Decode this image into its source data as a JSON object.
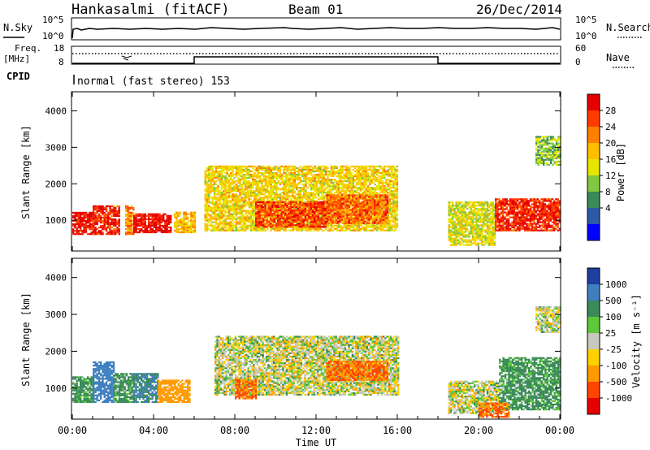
{
  "header": {
    "station": "Hankasalmi (fitACF)",
    "beam": "Beam 01",
    "date": "26/Dec/2014"
  },
  "noise_panel": {
    "left_label": "N.Sky",
    "right_label": "N.Search",
    "ticks_left": [
      "10^5",
      "10^0"
    ],
    "ticks_right": [
      "10^5",
      "10^0"
    ]
  },
  "freq_panel": {
    "left_label_lines": [
      "Freq.",
      "[MHz]"
    ],
    "right_label": "Nave",
    "ticks_left": [
      "18",
      "8"
    ],
    "ticks_right": [
      "60",
      "0"
    ]
  },
  "cpid": {
    "label": "CPID",
    "text": "normal (fast stereo) 153"
  },
  "time_axis": {
    "label": "Time UT",
    "ticks": [
      "00:00",
      "04:00",
      "08:00",
      "12:00",
      "16:00",
      "20:00",
      "00:00"
    ]
  },
  "power_panel": {
    "ylabel": "Slant Range [km]",
    "yticks": [
      "4000",
      "3000",
      "2000",
      "1000"
    ],
    "colorbar_label": "Power [dB]",
    "colorbar_ticks": [
      "28",
      "24",
      "20",
      "16",
      "12",
      "8",
      "4"
    ],
    "colorbar_colors": [
      "#e60000",
      "#ff3b00",
      "#ff7f00",
      "#ffbf00",
      "#e6e600",
      "#80c840",
      "#3a8a5a",
      "#2a5aa8",
      "#0000ff"
    ]
  },
  "velocity_panel": {
    "ylabel": "Slant Range [km]",
    "yticks": [
      "4000",
      "3000",
      "2000",
      "1000"
    ],
    "colorbar_label": "Velocity [m s⁻¹]",
    "colorbar_ticks": [
      "1000",
      "500",
      "100",
      "25",
      "-25",
      "-100",
      "-500",
      "-1000"
    ],
    "colorbar_colors": [
      "#1e3fa0",
      "#3f7fbf",
      "#3a8a5a",
      "#5cc83c",
      "#c8c8c0",
      "#ffd000",
      "#ff9a00",
      "#ff4500",
      "#e60000"
    ]
  },
  "chart_data": [
    {
      "type": "heatmap",
      "title": "Power",
      "x_unit": "hours UT",
      "xlim": [
        0,
        24
      ],
      "ylim": [
        180,
        4500
      ],
      "ylabel": "Slant Range [km]",
      "regions": [
        {
          "x": [
            0.0,
            1.0
          ],
          "y": [
            600,
            1200
          ],
          "power_db": 28
        },
        {
          "x": [
            1.0,
            2.3
          ],
          "y": [
            600,
            1400
          ],
          "power_db": 26
        },
        {
          "x": [
            2.6,
            3.0
          ],
          "y": [
            600,
            1400
          ],
          "power_db": 20
        },
        {
          "x": [
            3.0,
            4.8
          ],
          "y": [
            650,
            1150
          ],
          "power_db": 28
        },
        {
          "x": [
            5.0,
            6.0
          ],
          "y": [
            650,
            1200
          ],
          "power_db": 16
        },
        {
          "x": [
            6.5,
            16.0
          ],
          "y": [
            700,
            2500
          ],
          "power_db": 14
        },
        {
          "x": [
            9.0,
            12.5
          ],
          "y": [
            800,
            1500
          ],
          "power_db": 24
        },
        {
          "x": [
            12.5,
            15.5
          ],
          "y": [
            900,
            1700
          ],
          "power_db": 22
        },
        {
          "x": [
            18.5,
            20.8
          ],
          "y": [
            300,
            1500
          ],
          "power_db": 12
        },
        {
          "x": [
            20.8,
            24.0
          ],
          "y": [
            700,
            1600
          ],
          "power_db": 26
        },
        {
          "x": [
            22.8,
            24.0
          ],
          "y": [
            2500,
            3300
          ],
          "power_db": 8
        }
      ]
    },
    {
      "type": "heatmap",
      "title": "Velocity",
      "x_unit": "hours UT",
      "xlim": [
        0,
        24
      ],
      "ylim": [
        180,
        4500
      ],
      "ylabel": "Slant Range [km]",
      "regions": [
        {
          "x": [
            0.0,
            1.0
          ],
          "y": [
            600,
            1300
          ],
          "velocity_ms": 100
        },
        {
          "x": [
            1.0,
            2.0
          ],
          "y": [
            600,
            1700
          ],
          "velocity_ms": 500
        },
        {
          "x": [
            2.0,
            3.0
          ],
          "y": [
            600,
            1400
          ],
          "velocity_ms": 100
        },
        {
          "x": [
            3.0,
            4.2
          ],
          "y": [
            600,
            1400
          ],
          "velocity_ms": 300
        },
        {
          "x": [
            4.2,
            5.8
          ],
          "y": [
            600,
            1200
          ],
          "velocity_ms": -200
        },
        {
          "x": [
            7.0,
            16.0
          ],
          "y": [
            800,
            2400
          ],
          "velocity_ms": 0
        },
        {
          "x": [
            8.0,
            9.0
          ],
          "y": [
            700,
            1200
          ],
          "velocity_ms": -300
        },
        {
          "x": [
            12.5,
            15.5
          ],
          "y": [
            1200,
            1700
          ],
          "velocity_ms": -300
        },
        {
          "x": [
            18.5,
            21.0
          ],
          "y": [
            300,
            1200
          ],
          "velocity_ms": 0
        },
        {
          "x": [
            21.0,
            24.0
          ],
          "y": [
            400,
            1800
          ],
          "velocity_ms": 100
        },
        {
          "x": [
            20.0,
            21.5
          ],
          "y": [
            200,
            600
          ],
          "velocity_ms": -300
        },
        {
          "x": [
            22.8,
            24.0
          ],
          "y": [
            2500,
            3200
          ],
          "velocity_ms": 0
        }
      ]
    }
  ],
  "frequency_trace": [
    {
      "x_start": 0.0,
      "x_end": 6.0,
      "freq_mhz": 8
    },
    {
      "x_start": 6.0,
      "x_end": 18.0,
      "freq_mhz": 12
    },
    {
      "x_start": 18.0,
      "x_end": 24.0,
      "freq_mhz": 8
    }
  ]
}
